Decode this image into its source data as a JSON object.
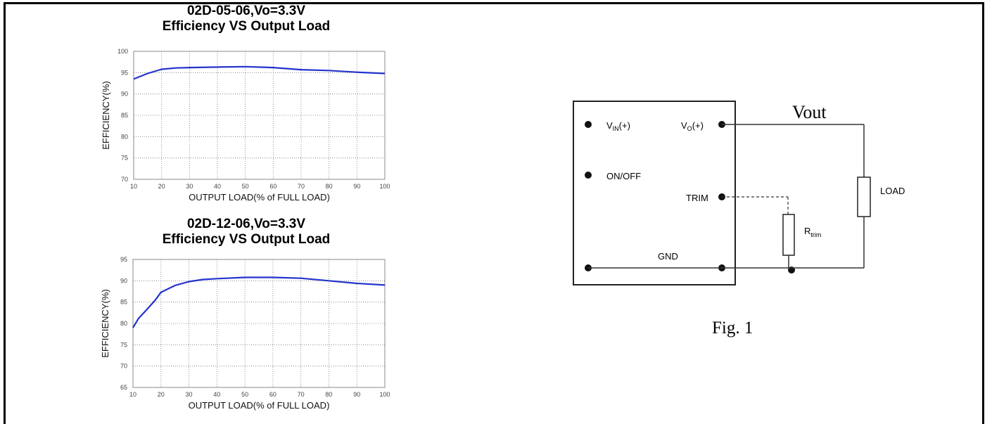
{
  "charts_meta": {
    "chart1_title_line1": "02D-05-06,Vo=3.3V",
    "chart1_title_line2": "Efficiency VS Output Load",
    "chart2_title_line1": "02D-12-06,Vo=3.3V",
    "chart2_title_line2": "Efficiency VS Output Load"
  },
  "chart_data": [
    {
      "type": "line",
      "title": "02D-05-06,Vo=3.3V Efficiency VS Output Load",
      "xlabel": "OUTPUT LOAD(% of FULL LOAD)",
      "ylabel": "EFFICIENCY(%)",
      "xlim": [
        10,
        100
      ],
      "ylim": [
        70,
        100
      ],
      "xticks": [
        10,
        20,
        30,
        40,
        50,
        60,
        70,
        80,
        90,
        100
      ],
      "yticks": [
        70,
        75,
        80,
        85,
        90,
        95,
        100
      ],
      "grid": true,
      "series_color": "#2233cc",
      "x": [
        10,
        15,
        20,
        25,
        30,
        40,
        50,
        60,
        70,
        80,
        90,
        100
      ],
      "y": [
        93.5,
        94.8,
        95.8,
        96.1,
        96.2,
        96.3,
        96.4,
        96.2,
        95.7,
        95.5,
        95.1,
        94.8
      ]
    },
    {
      "type": "line",
      "title": "02D-12-06,Vo=3.3V Efficiency VS Output Load",
      "xlabel": "OUTPUT LOAD(% of FULL LOAD)",
      "ylabel": "EFFICIENCY(%)",
      "xlim": [
        10,
        100
      ],
      "ylim": [
        65,
        95
      ],
      "xticks": [
        10,
        20,
        30,
        40,
        50,
        60,
        70,
        80,
        90,
        100
      ],
      "yticks": [
        65,
        70,
        75,
        80,
        85,
        90,
        95
      ],
      "grid": true,
      "series_color": "#2233cc",
      "x": [
        10,
        12,
        15,
        18,
        20,
        25,
        30,
        35,
        40,
        50,
        60,
        70,
        80,
        90,
        100
      ],
      "y": [
        79,
        81.2,
        83.3,
        85.5,
        87.3,
        88.9,
        89.8,
        90.3,
        90.5,
        90.8,
        90.8,
        90.6,
        90.0,
        89.4,
        89.0
      ]
    }
  ],
  "diagram": {
    "vin_label": "V",
    "vin_sub": "IN",
    "vin_suffix": "(+)",
    "vo_label": "V",
    "vo_sub": "O",
    "vo_suffix": "(+)",
    "onoff_label": "ON/OFF",
    "trim_label": "TRIM",
    "gnd_label": "GND",
    "load_label": "LOAD",
    "rtrim_label": "R",
    "rtrim_sub": "trim",
    "vout_label": "Vout",
    "fig_caption": "Fig. 1"
  }
}
